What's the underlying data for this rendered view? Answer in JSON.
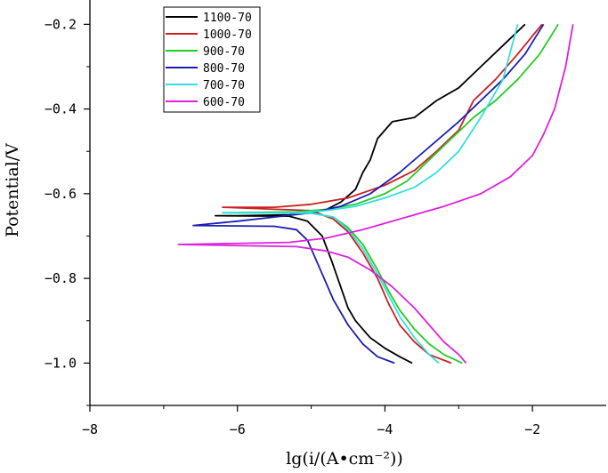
{
  "chart_data": {
    "type": "line",
    "title": "",
    "xlabel": "lg(i/(A•cm⁻²))",
    "ylabel": "Potential/V",
    "xlim": [
      -8,
      -1.0
    ],
    "ylim": [
      -1.1,
      -0.13
    ],
    "xticks": [
      -8,
      -6,
      -4,
      -2
    ],
    "xtick_labels": [
      "−8",
      "−6",
      "−4",
      "−2"
    ],
    "yticks": [
      -0.2,
      -0.4,
      -0.6,
      -0.8,
      -1.0
    ],
    "ytick_labels": [
      "−0.2",
      "−0.4",
      "−0.6",
      "−0.8",
      "−1.0"
    ],
    "grid": false,
    "legend_position": "top-left",
    "series": [
      {
        "name": "1100-70",
        "color": "#000000",
        "x": [
          -2.1,
          -2.4,
          -2.7,
          -3.0,
          -3.3,
          -3.6,
          -3.9,
          -4.1,
          -4.2,
          -4.3,
          -4.4,
          -4.6,
          -4.8,
          -5.0,
          -5.3,
          -6.0,
          -6.3,
          -5.3,
          -5.05,
          -4.85,
          -4.72,
          -4.6,
          -4.5,
          -4.4,
          -4.3,
          -4.2,
          -4.0,
          -3.8,
          -3.63
        ],
        "y": [
          -0.2,
          -0.25,
          -0.3,
          -0.35,
          -0.38,
          -0.42,
          -0.43,
          -0.47,
          -0.52,
          -0.55,
          -0.59,
          -0.62,
          -0.638,
          -0.645,
          -0.65,
          -0.652,
          -0.652,
          -0.653,
          -0.665,
          -0.7,
          -0.76,
          -0.82,
          -0.87,
          -0.9,
          -0.92,
          -0.94,
          -0.965,
          -0.985,
          -1.0
        ]
      },
      {
        "name": "1000-70",
        "color": "#cc2020",
        "x": [
          -1.87,
          -2.2,
          -2.5,
          -2.8,
          -3.0,
          -3.3,
          -3.6,
          -4.0,
          -4.5,
          -5.0,
          -5.5,
          -6.2,
          -5.0,
          -4.7,
          -4.5,
          -4.3,
          -4.1,
          -3.95,
          -3.8,
          -3.6,
          -3.4,
          -3.1
        ],
        "y": [
          -0.2,
          -0.27,
          -0.33,
          -0.38,
          -0.45,
          -0.5,
          -0.545,
          -0.58,
          -0.61,
          -0.625,
          -0.632,
          -0.632,
          -0.64,
          -0.66,
          -0.69,
          -0.74,
          -0.8,
          -0.86,
          -0.91,
          -0.95,
          -0.98,
          -1.0
        ]
      },
      {
        "name": "900-70",
        "color": "#22cc22",
        "x": [
          -1.65,
          -1.9,
          -2.2,
          -2.5,
          -2.8,
          -3.1,
          -3.4,
          -3.7,
          -4.0,
          -4.4,
          -4.8,
          -5.2,
          -6.2,
          -5.0,
          -4.7,
          -4.5,
          -4.3,
          -4.1,
          -3.95,
          -3.8,
          -3.6,
          -3.4,
          -3.2,
          -2.95
        ],
        "y": [
          -0.2,
          -0.27,
          -0.33,
          -0.38,
          -0.42,
          -0.47,
          -0.52,
          -0.57,
          -0.6,
          -0.625,
          -0.637,
          -0.643,
          -0.645,
          -0.646,
          -0.655,
          -0.68,
          -0.72,
          -0.78,
          -0.83,
          -0.875,
          -0.92,
          -0.955,
          -0.98,
          -1.0
        ]
      },
      {
        "name": "800-70",
        "color": "#1c1cb4",
        "x": [
          -1.85,
          -2.1,
          -2.4,
          -2.7,
          -3.0,
          -3.4,
          -3.8,
          -4.2,
          -4.6,
          -5.0,
          -5.5,
          -6.0,
          -6.6,
          -5.5,
          -5.2,
          -5.05,
          -4.9,
          -4.7,
          -4.5,
          -4.3,
          -4.1,
          -3.87
        ],
        "y": [
          -0.2,
          -0.27,
          -0.33,
          -0.38,
          -0.43,
          -0.49,
          -0.55,
          -0.6,
          -0.63,
          -0.645,
          -0.655,
          -0.665,
          -0.675,
          -0.677,
          -0.685,
          -0.71,
          -0.77,
          -0.85,
          -0.91,
          -0.955,
          -0.985,
          -1.0
        ]
      },
      {
        "name": "700-70",
        "color": "#33e0e0",
        "x": [
          -2.2,
          -2.4,
          -2.7,
          -3.0,
          -3.3,
          -3.6,
          -4.0,
          -4.4,
          -4.8,
          -5.2,
          -6.2,
          -5.0,
          -4.7,
          -4.5,
          -4.3,
          -4.1,
          -3.95,
          -3.8,
          -3.6,
          -3.4,
          -3.27
        ],
        "y": [
          -0.2,
          -0.33,
          -0.42,
          -0.5,
          -0.55,
          -0.585,
          -0.61,
          -0.63,
          -0.64,
          -0.645,
          -0.645,
          -0.646,
          -0.655,
          -0.685,
          -0.73,
          -0.79,
          -0.84,
          -0.89,
          -0.94,
          -0.98,
          -1.0
        ]
      },
      {
        "name": "600-70",
        "color": "#dd22dd",
        "x": [
          -1.45,
          -1.55,
          -1.7,
          -1.85,
          -2.0,
          -2.3,
          -2.7,
          -3.2,
          -3.8,
          -4.3,
          -4.8,
          -5.3,
          -6.8,
          -5.2,
          -4.8,
          -4.5,
          -4.2,
          -3.9,
          -3.6,
          -3.4,
          -3.2,
          -3.0,
          -2.9
        ],
        "y": [
          -0.2,
          -0.3,
          -0.4,
          -0.46,
          -0.51,
          -0.56,
          -0.6,
          -0.63,
          -0.66,
          -0.685,
          -0.705,
          -0.715,
          -0.72,
          -0.725,
          -0.735,
          -0.75,
          -0.78,
          -0.82,
          -0.87,
          -0.91,
          -0.95,
          -0.98,
          -1.0
        ]
      }
    ]
  }
}
